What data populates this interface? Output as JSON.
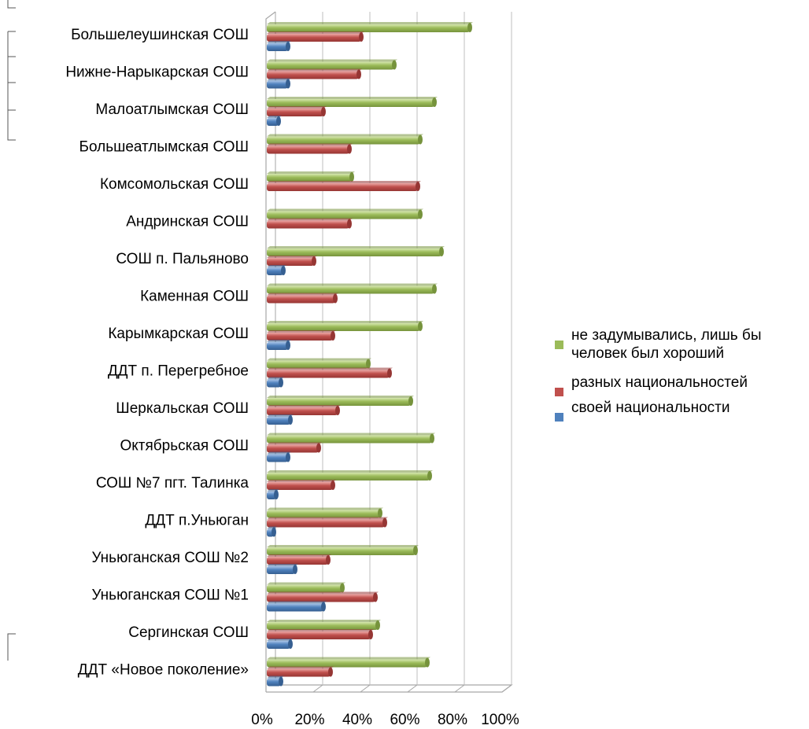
{
  "chart_data": {
    "type": "bar",
    "orientation": "horizontal",
    "categories": [
      "Большелеушинская СОШ",
      "Нижне-Нарыкарская СОШ",
      "Малоатлымская СОШ",
      "Большеатлымская СОШ",
      "Комсомольская СОШ",
      "Андринская СОШ",
      "СОШ п. Пальяново",
      "Каменная СОШ",
      "Карымкарская СОШ",
      "ДДТ п. Перегребное",
      "Шеркальская СОШ",
      "Октябрьская СОШ",
      "СОШ №7 пгт. Талинка",
      "ДДТ п.Уньюган",
      "Уньюганская СОШ №2",
      "Уньюганская СОШ №1",
      "Сергинская СОШ",
      "ДДТ «Новое поколение»"
    ],
    "series": [
      {
        "name": "не задумывались, лишь бы человек был хороший",
        "color": "#9bbb59",
        "values": [
          86,
          54,
          71,
          65,
          36,
          65,
          74,
          71,
          65,
          43,
          61,
          70,
          69,
          48,
          63,
          32,
          47,
          68
        ]
      },
      {
        "name": "разных национальностей",
        "color": "#c0504d",
        "values": [
          40,
          39,
          24,
          35,
          64,
          35,
          20,
          29,
          28,
          52,
          30,
          22,
          28,
          50,
          26,
          46,
          44,
          27
        ]
      },
      {
        "name": "своей национальности",
        "color": "#4f81bd",
        "values": [
          9,
          9,
          5,
          0,
          0,
          0,
          7,
          0,
          9,
          6,
          10,
          9,
          4,
          3,
          12,
          24,
          10,
          6
        ]
      }
    ],
    "x_ticks": [
      "0%",
      "20%",
      "40%",
      "60%",
      "80%",
      "100%"
    ],
    "xlim": [
      0,
      100
    ],
    "legend_lines": [
      [
        "не задумывались, лишь бы",
        "человек был хороший"
      ],
      [
        "разных национальностей"
      ],
      [
        "своей национальности"
      ]
    ],
    "legend_position": "right",
    "grid": true
  }
}
